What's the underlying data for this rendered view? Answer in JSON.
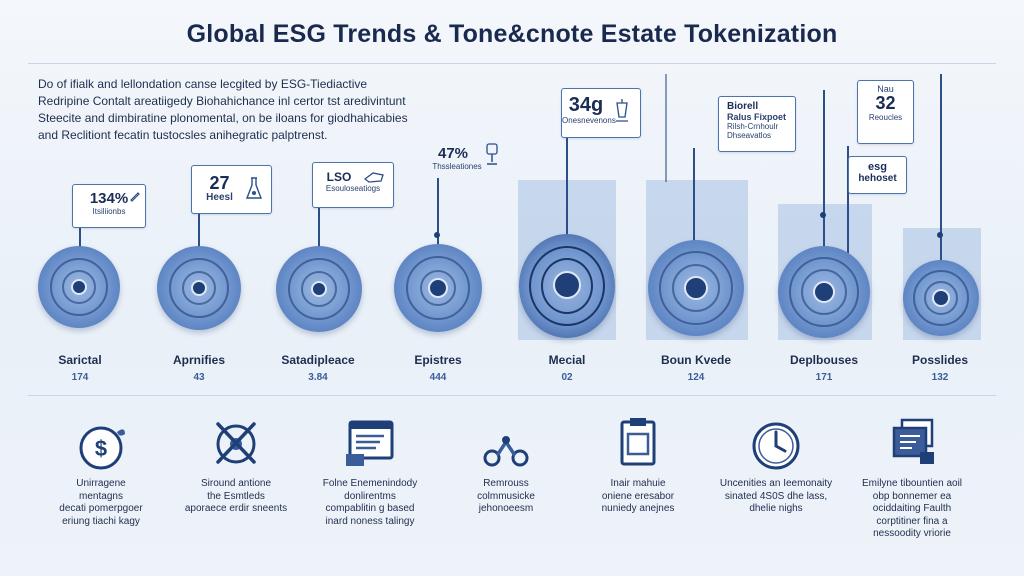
{
  "title": "Global ESG Trends & Tone&cnote Estate Tokenization",
  "intro": [
    "Do of ifialk and lellondation canse lecgited by ESG-Tiediactive",
    "Redripine Contalt areatiigedy Biohahichance inl certor tst aredivintunt",
    "Steecite and dimbiratine plonomental, on be iloans for giodhahicabies",
    "and Reclitiont fecatin tustocsles anihegratic palptrenst."
  ],
  "stages": [
    {
      "label": "Sarictal",
      "value": "174",
      "callout_value": "134%",
      "callout_sub": "Itsiliionbs"
    },
    {
      "label": "Aprnifies",
      "value": "43",
      "callout_value": "27",
      "callout_sub": "Heesl"
    },
    {
      "label": "Satadipleace",
      "value": "3.84",
      "callout_value": "LSO",
      "callout_sub": "Esouloseatiogs"
    },
    {
      "label": "Epistres",
      "value": "444",
      "callout_value": "47%",
      "callout_sub": "Thssleationes"
    },
    {
      "label": "Mecial",
      "value": "02",
      "callout_value": "34g",
      "callout_sub": "Onesnevenons"
    },
    {
      "label": "Boun Kvede",
      "value": "124",
      "callout_value": "Biorell",
      "callout_sub": "Ralus Fixpoet"
    },
    {
      "label": "Deplbouses",
      "value": "171",
      "callout_value": "esg",
      "callout_sub": "hehoset"
    },
    {
      "label": "Posslides",
      "value": "132",
      "callout_value": "32",
      "callout_sub": "Reoucles"
    }
  ],
  "callout_extra": {
    "stage6_lines": [
      "Rilsh-Crnhoulr",
      "Dhseavatlos"
    ],
    "stage8_top": "Nau"
  },
  "features": [
    {
      "icon": "dollar-leaf-icon",
      "lines": [
        "Unirragene",
        "mentagns",
        "decati pomerpgoer",
        "eriung tiachi kagy"
      ]
    },
    {
      "icon": "tools-target-icon",
      "lines": [
        "Siround antione",
        "the Esmtleds",
        "aporaece erdir sneents"
      ]
    },
    {
      "icon": "document-window-icon",
      "lines": [
        "Folne Enemenindody",
        "donlirentms",
        "compablitin g based",
        "inard noness talingy"
      ]
    },
    {
      "icon": "chain-link-icon",
      "lines": [
        "Remrouss",
        "colmmusicke",
        "jehonoeesm"
      ]
    },
    {
      "icon": "clipboard-icon",
      "lines": [
        "Inair mahuie",
        "oniene eresabor",
        "nuniedy anejnes"
      ]
    },
    {
      "icon": "clock-icon",
      "lines": [
        "Uncenities an Ieemonaity",
        "sinated 4S0S dhe lass,",
        "dhelie nighs"
      ]
    },
    {
      "icon": "stacked-documents-icon",
      "lines": [
        "Emilyne tibountien aoil",
        "obp bonnemer ea",
        "ociddaiting Faulth",
        "corptitiner fina a",
        "nessoodity vriorie"
      ]
    }
  ],
  "colors": {
    "accent": "#2c4f8a",
    "disc": "#5f86c4",
    "band": "#b9cde8",
    "text": "#1f2e4f"
  }
}
